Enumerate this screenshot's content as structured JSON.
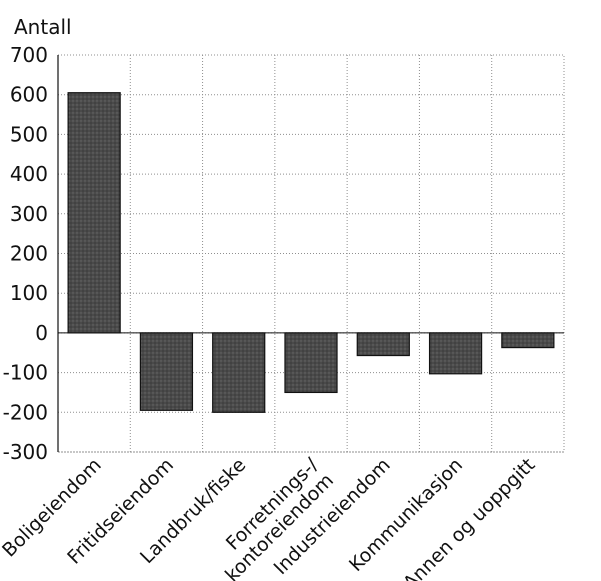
{
  "chart_data": {
    "type": "bar",
    "ylabel": "Antall",
    "categories": [
      "Boligeiendom",
      "Fritidseiendom",
      "Landbruk/fiske",
      "Forretnings-/\nkontoreiendom",
      "Industrieiendom",
      "Kommunikasjon",
      "Annen og uoppgitt"
    ],
    "values": [
      605,
      -195,
      -200,
      -150,
      -57,
      -103,
      -37
    ],
    "ylim": [
      -300,
      700
    ],
    "yticks": [
      -300,
      -200,
      -100,
      0,
      100,
      200,
      300,
      400,
      500,
      600,
      700
    ],
    "grid": true,
    "bar_color": "#3f3f3f"
  }
}
